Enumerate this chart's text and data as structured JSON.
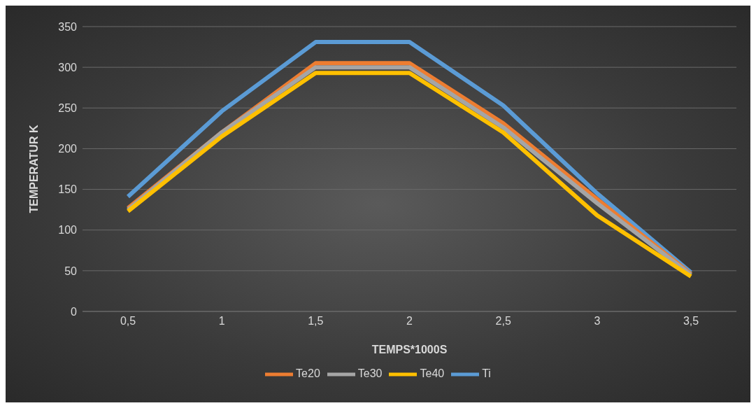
{
  "chart_data": {
    "type": "line",
    "xlabel": "TEMPS*1000S",
    "ylabel": "TEMPERATUR K",
    "categories": [
      "0,5",
      "1",
      "1,5",
      "2",
      "2,5",
      "3",
      "3,5"
    ],
    "series": [
      {
        "name": "Ti",
        "color": "#5b9bd5",
        "values": [
          141,
          246,
          331,
          331,
          253,
          145,
          48
        ]
      },
      {
        "name": "Te20",
        "color": "#ed7d31",
        "values": [
          127,
          220,
          305,
          305,
          231,
          138,
          46
        ]
      },
      {
        "name": "Te30",
        "color": "#a5a5a5",
        "values": [
          125,
          220,
          300,
          300,
          226,
          133,
          45
        ]
      },
      {
        "name": "Te40",
        "color": "#ffc000",
        "values": [
          123,
          215,
          293,
          293,
          220,
          118,
          43
        ]
      }
    ],
    "ylim": [
      0,
      350
    ],
    "yticks": [
      0,
      50,
      100,
      150,
      200,
      250,
      300,
      350
    ],
    "grid": "y",
    "legend": "bottom",
    "marker": "none",
    "line_style": "solid"
  }
}
